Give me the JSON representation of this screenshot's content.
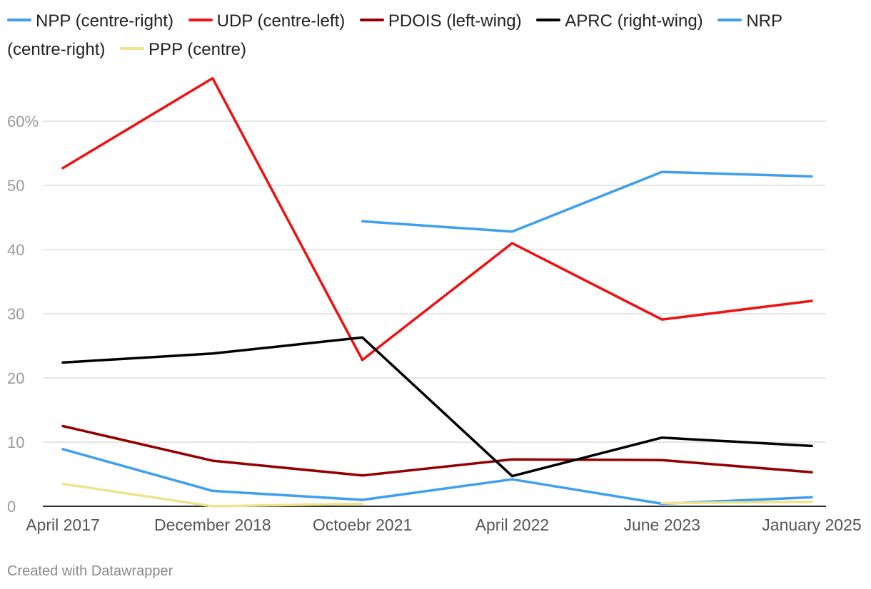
{
  "chart_data": {
    "type": "line",
    "title": "",
    "xlabel": "",
    "ylabel": "",
    "categories": [
      "April 2017",
      "December 2018",
      "Octoebr 2021",
      "April 2022",
      "June 2023",
      "January 2025"
    ],
    "ylim": [
      0,
      70
    ],
    "yticks": [
      {
        "value": 0,
        "label": "0"
      },
      {
        "value": 10,
        "label": "10"
      },
      {
        "value": 20,
        "label": "20"
      },
      {
        "value": 30,
        "label": "30"
      },
      {
        "value": 40,
        "label": "40"
      },
      {
        "value": 50,
        "label": "50"
      },
      {
        "value": 60,
        "label": "60%"
      }
    ],
    "grid": true,
    "legend_position": "top-left",
    "series": [
      {
        "name": "NPP (centre-right)",
        "color": "#3e9ff0",
        "values": [
          8.9,
          2.4,
          1.0,
          4.2,
          0.4,
          1.4
        ]
      },
      {
        "name": "UDP (centre-left)",
        "color": "#ee1111",
        "values": [
          52.7,
          66.7,
          22.8,
          41.0,
          29.1,
          32.0
        ]
      },
      {
        "name": "PDOIS (left-wing)",
        "color": "#940000",
        "values": [
          12.5,
          7.1,
          4.8,
          7.3,
          7.2,
          5.3
        ]
      },
      {
        "name": "APRC (right-wing)",
        "color": "#000000",
        "values": [
          22.4,
          23.8,
          26.3,
          4.7,
          10.7,
          9.4
        ]
      },
      {
        "name": "NRP (centre-right)",
        "color": "#3e9ff0",
        "values": [
          null,
          null,
          44.4,
          42.8,
          52.1,
          51.4
        ]
      },
      {
        "name": "PPP (centre)",
        "color": "#efe38d",
        "values": [
          3.5,
          0.0,
          0.4,
          null,
          0.5,
          0.7
        ]
      }
    ]
  },
  "footer": {
    "credit": "Created with Datawrapper"
  }
}
